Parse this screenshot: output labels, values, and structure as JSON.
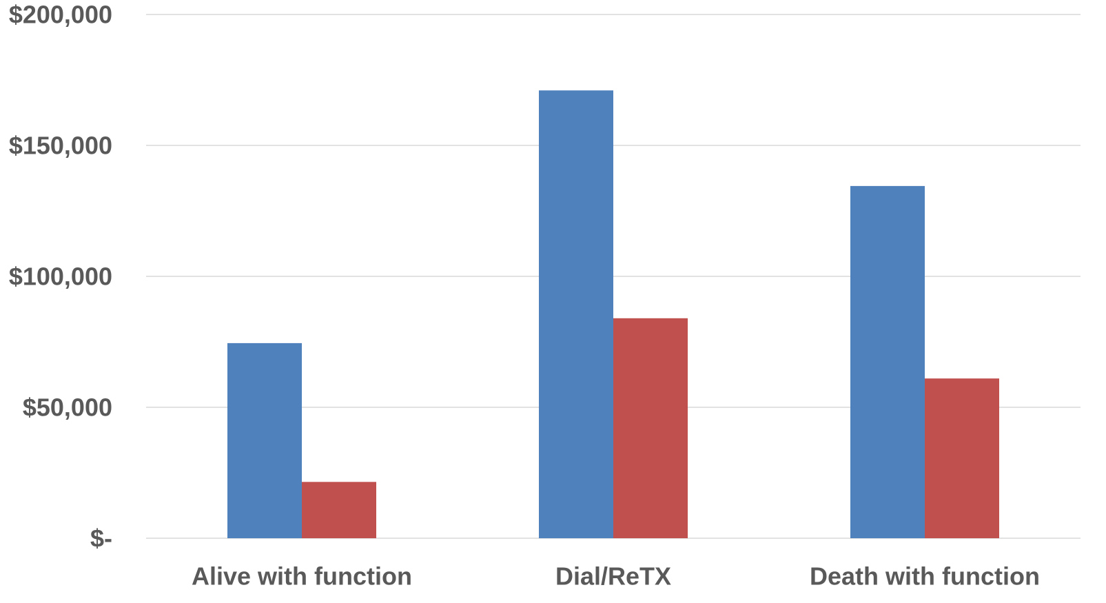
{
  "chart_data": {
    "type": "bar",
    "title": "",
    "xlabel": "",
    "ylabel": "",
    "categories": [
      "Alive with function",
      "Dial/ReTX",
      "Death with function"
    ],
    "series": [
      {
        "values": [
          74500,
          171000,
          134500
        ],
        "color": "#4f81bd"
      },
      {
        "values": [
          21500,
          84000,
          61000
        ],
        "color": "#c0504d"
      }
    ],
    "ylim": [
      0,
      200000
    ],
    "yticks": [
      0,
      50000,
      100000,
      150000,
      200000
    ],
    "ytick_labels": [
      "$-",
      "$50,000",
      "$100,000",
      "$150,000",
      "$200,000"
    ],
    "grid": true,
    "legend": "none"
  }
}
